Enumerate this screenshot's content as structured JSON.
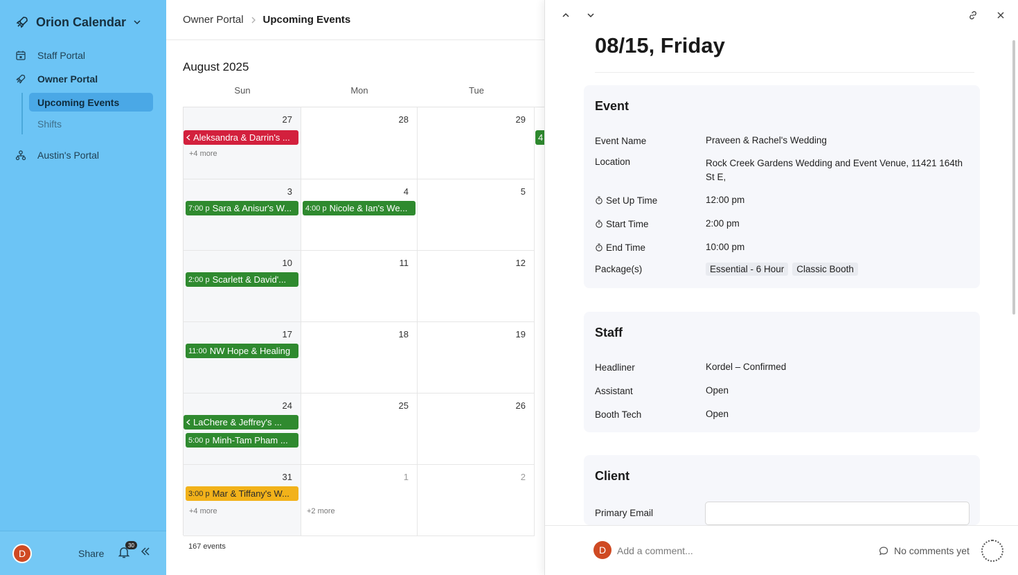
{
  "sidebar": {
    "workspace": "Orion Calendar",
    "nav": [
      {
        "label": "Staff Portal",
        "icon": "calendar-icon"
      },
      {
        "label": "Owner Portal",
        "icon": "rocket-icon"
      },
      {
        "label": "Austin's Portal",
        "icon": "org-chart-icon"
      }
    ],
    "sub_items": [
      "Upcoming Events",
      "Shifts"
    ],
    "footer": {
      "avatar_initial": "D",
      "share_label": "Share",
      "notification_count": "30"
    }
  },
  "header": {
    "breadcrumb": [
      "Owner Portal",
      "Upcoming Events"
    ]
  },
  "calendar": {
    "month_title": "August 2025",
    "weekdays": [
      "Sun",
      "Mon",
      "Tue"
    ],
    "rows": [
      [
        "27",
        "28",
        "29"
      ],
      [
        "3",
        "4",
        "5"
      ],
      [
        "10",
        "11",
        "12"
      ],
      [
        "17",
        "18",
        "19"
      ],
      [
        "24",
        "25",
        "26"
      ],
      [
        "31",
        "1",
        "2"
      ]
    ],
    "events": {
      "e1": {
        "title": "Aleksandra & Darrin's ..."
      },
      "e2": {
        "time": "7:00 p",
        "title": "Sara & Anisur's W..."
      },
      "e3": {
        "time": "4:00 p",
        "title": "Nicole & Ian's We..."
      },
      "e4": {
        "time": "2:00 p",
        "title": "Scarlett & David'..."
      },
      "e5": {
        "time": "11:00",
        "title": "NW Hope & Healing"
      },
      "e6": {
        "title": "LaChere & Jeffrey's ..."
      },
      "e7": {
        "time": "5:00 p",
        "title": "Minh-Tam Pham ..."
      },
      "e8": {
        "time": "3:00 p",
        "title": "Mar & Tiffany's W..."
      },
      "e9": {
        "title": "4"
      }
    },
    "more": {
      "row1_sun": "+4 more",
      "row6_sun": "+4 more",
      "row6_mon": "+2 more"
    },
    "event_count": "167 events"
  },
  "panel": {
    "title": "08/15, Friday",
    "event_card": {
      "title": "Event",
      "rows": [
        {
          "label": "Event Name",
          "value": "Praveen & Rachel's Wedding"
        },
        {
          "label": "Location",
          "value": "Rock Creek Gardens Wedding and Event Venue, 11421 164th St E,"
        },
        {
          "label": "Set Up Time",
          "value": "12:00 pm"
        },
        {
          "label": "Start Time",
          "value": "2:00 pm"
        },
        {
          "label": "End Time",
          "value": "10:00 pm"
        },
        {
          "label": "Package(s)",
          "chips": [
            "Essential - 6 Hour",
            "Classic Booth"
          ]
        }
      ]
    },
    "staff_card": {
      "title": "Staff",
      "rows": [
        {
          "label": "Headliner",
          "value": "Kordel – Confirmed"
        },
        {
          "label": "Assistant",
          "value": "Open"
        },
        {
          "label": "Booth Tech",
          "value": "Open"
        }
      ]
    },
    "client_card": {
      "title": "Client",
      "rows": [
        {
          "label": "Primary Email",
          "value": ""
        }
      ]
    },
    "footer": {
      "avatar_initial": "D",
      "comment_placeholder": "Add a comment...",
      "no_comments": "No comments yet"
    }
  },
  "colors": {
    "sidebar": "#6cc4f5",
    "event_green": "#2f8a2f",
    "event_red": "#d3203d",
    "event_yellow": "#f2b21a",
    "avatar": "#cf4a23"
  }
}
